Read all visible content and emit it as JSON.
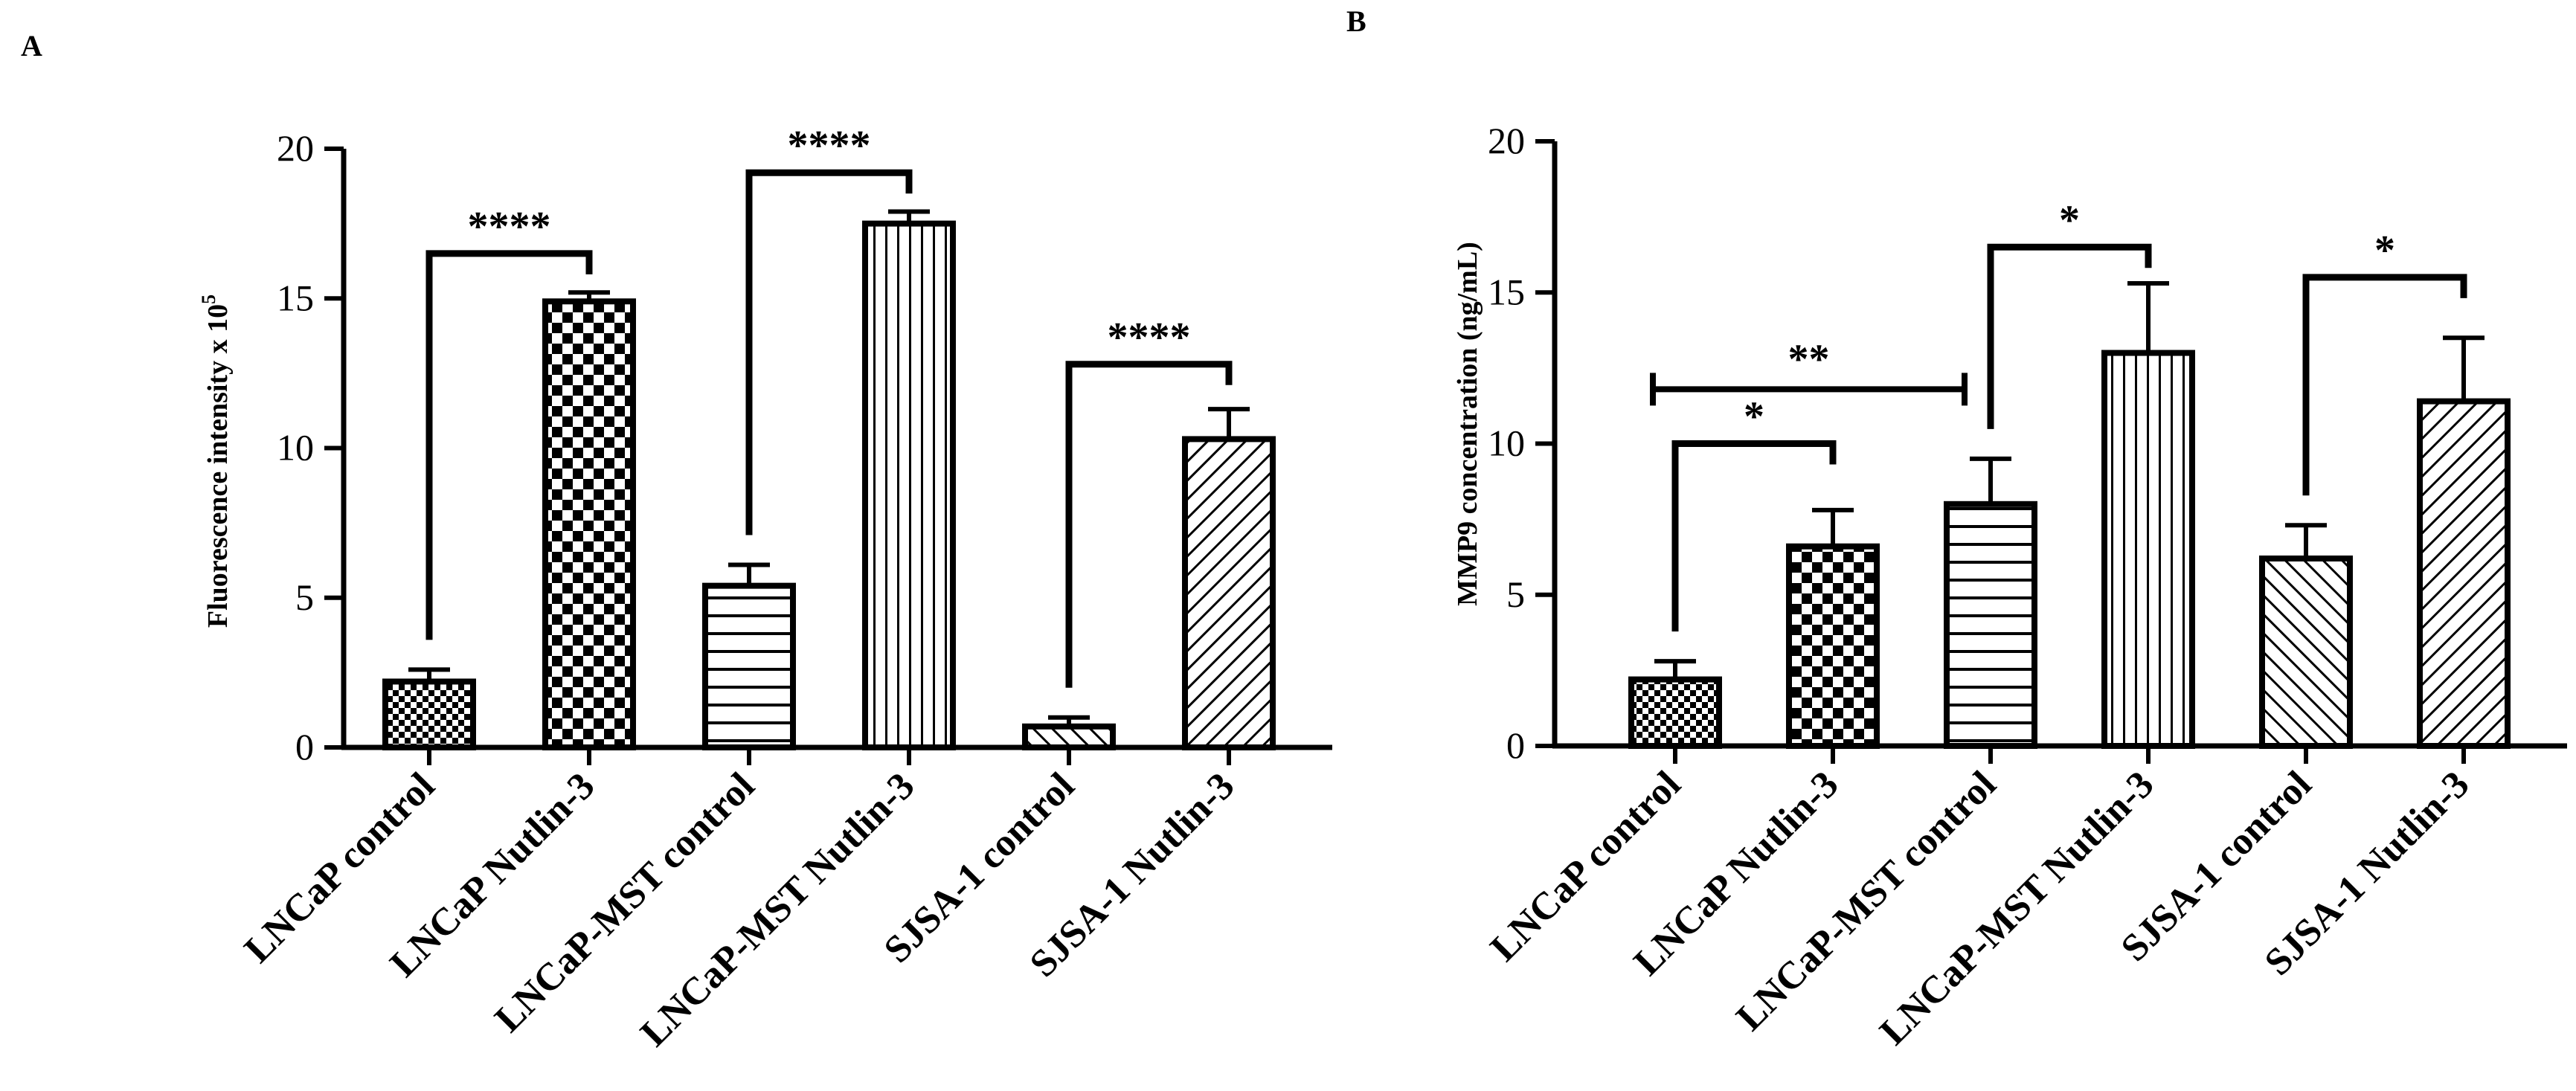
{
  "chart_data": [
    {
      "panel": "A",
      "type": "bar",
      "ylabel": "Fluorescence intensity x 10",
      "ylabel_sup": "5",
      "ylim": [
        0,
        20
      ],
      "yticks": [
        "0",
        "5",
        "10",
        "15",
        "20"
      ],
      "categories": [
        "LNCaP control",
        "LNCaP Nutlin-3",
        "LNCaP-MST control",
        "LNCaP-MST Nutlin-3",
        "SJSA-1 control",
        "SJSA-1 Nutlin-3"
      ],
      "values": [
        2.2,
        14.9,
        5.4,
        17.5,
        0.7,
        10.3
      ],
      "errors": [
        0.4,
        0.3,
        0.7,
        0.4,
        0.3,
        1.0
      ],
      "patterns": [
        "fine-check",
        "check",
        "horizontal",
        "vertical",
        "diagonal-right",
        "diagonal-left"
      ],
      "significance": [
        {
          "from": 0,
          "to": 1,
          "label": "****",
          "y": 16.5
        },
        {
          "from": 2,
          "to": 3,
          "label": "****",
          "y": 19.2
        },
        {
          "from": 4,
          "to": 5,
          "label": "****",
          "y": 12.8
        }
      ]
    },
    {
      "panel": "B",
      "type": "bar",
      "ylabel": "MMP9 concentration (ng/mL)",
      "ylim": [
        0,
        20
      ],
      "yticks": [
        "0",
        "5",
        "10",
        "15",
        "20"
      ],
      "categories": [
        "LNCaP control",
        "LNCaP Nutlin-3",
        "LNCaP-MST control",
        "LNCaP-MST Nutlin-3",
        "SJSA-1 control",
        "SJSA-1 Nutlin-3"
      ],
      "values": [
        2.2,
        6.6,
        8.0,
        13.0,
        6.2,
        11.4
      ],
      "errors": [
        0.6,
        1.2,
        1.5,
        2.3,
        1.1,
        2.1
      ],
      "patterns": [
        "fine-check",
        "check",
        "horizontal",
        "vertical",
        "diagonal-right",
        "diagonal-left"
      ],
      "significance": [
        {
          "from": 0,
          "to": 1,
          "label": "*",
          "y": 10.0
        },
        {
          "from": 2,
          "to": 3,
          "label": "*",
          "y": 16.5
        },
        {
          "from": 4,
          "to": 5,
          "label": "*",
          "y": 15.5
        }
      ],
      "wide_brackets": [
        {
          "from": 0,
          "to": 2,
          "label": "**",
          "y": 11.8
        }
      ]
    }
  ]
}
